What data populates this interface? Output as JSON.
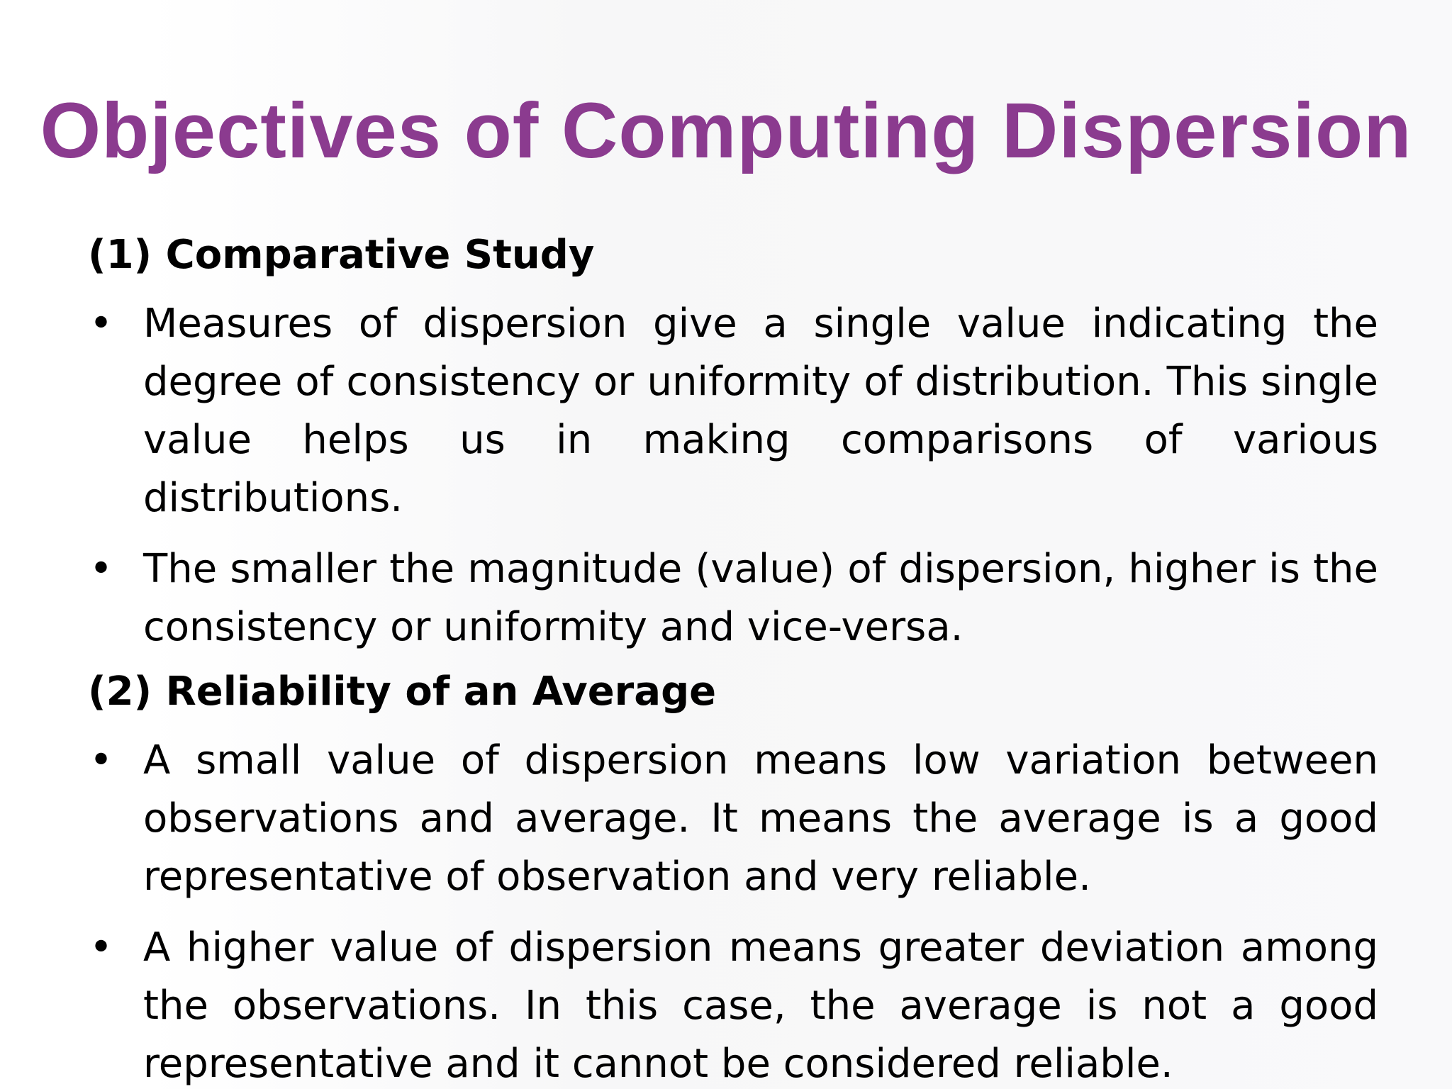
{
  "slide": {
    "title": "Objectives of Computing Dispersion",
    "sections": [
      {
        "heading": "(1) Comparative Study",
        "bullets": [
          "Measures of dispersion give a single value indicating the degree of consistency or uniformity of distribution. This single value helps us in making comparisons of various distributions.",
          "The smaller the magnitude (value) of dispersion, higher is the consistency or uniformity and vice-versa."
        ]
      },
      {
        "heading": "(2) Reliability of an Average",
        "bullets": [
          "A small value of dispersion means low variation between observations and average. It means the average is a good representative of observation and very reliable.",
          "A higher value of dispersion means greater deviation among the observations. In this case, the average is not a good representative and it cannot be considered reliable."
        ]
      }
    ],
    "bullet_glyph": "•",
    "colors": {
      "title": "#8b3b8f",
      "text": "#000000",
      "background": "#ffffff"
    }
  }
}
